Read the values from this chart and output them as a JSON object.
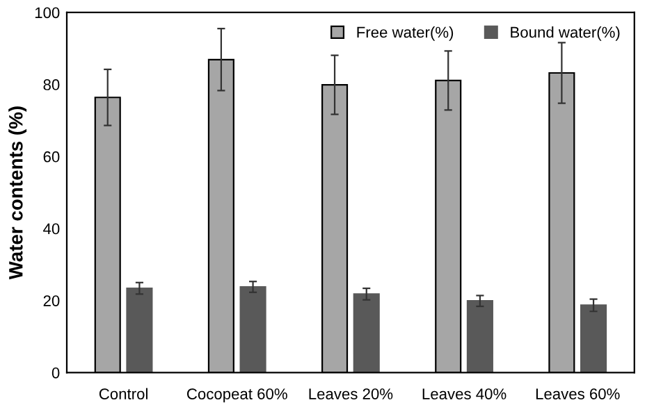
{
  "chart_data": {
    "type": "bar",
    "ylabel": "Water contents (%)",
    "categories": [
      "Control",
      "Cocopeat 60%",
      "Leaves 20%",
      "Leaves 40%",
      "Leaves 60%"
    ],
    "series": [
      {
        "name": "Free water(%)",
        "color": "#a6a6a6",
        "values": [
          76.4,
          86.9,
          79.9,
          81.1,
          83.2
        ],
        "errors": [
          7.8,
          8.6,
          8.2,
          8.2,
          8.4
        ]
      },
      {
        "name": "Bound water(%)",
        "color": "#595959",
        "values": [
          23.4,
          23.8,
          21.8,
          19.9,
          18.7
        ],
        "errors": [
          1.6,
          1.5,
          1.6,
          1.5,
          1.7
        ]
      }
    ],
    "ylim": [
      0,
      100
    ],
    "yticks": [
      0,
      20,
      40,
      60,
      80,
      100
    ],
    "grid": false,
    "legend": "top right"
  }
}
